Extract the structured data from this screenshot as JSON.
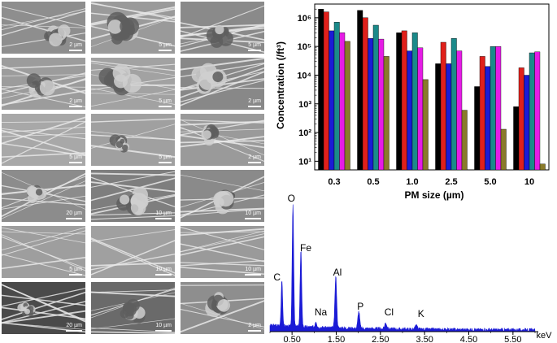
{
  "sem_panels": [
    {
      "scale": "2 µm",
      "bg": "#8e8e8e",
      "blob": 0.45
    },
    {
      "scale": "5 µm",
      "bg": "#9a9a9a",
      "blob": 0.85
    },
    {
      "scale": "5 µm",
      "bg": "#8a8a8a",
      "blob": 0.55
    },
    {
      "scale": "2 µm",
      "bg": "#9c9c9c",
      "blob": 0.5
    },
    {
      "scale": "5 µm",
      "bg": "#a2a2a2",
      "blob": 0.8
    },
    {
      "scale": "2 µm",
      "bg": "#888888",
      "blob": 0.7
    },
    {
      "scale": "5 µm",
      "bg": "#a8a8a8",
      "blob": 0
    },
    {
      "scale": "5 µm",
      "bg": "#a0a0a0",
      "blob": 0.3
    },
    {
      "scale": "2 µm",
      "bg": "#9a9a9a",
      "blob": 0.35
    },
    {
      "scale": "20 µm",
      "bg": "#8c8c8c",
      "blob": 0.4
    },
    {
      "scale": "10 µm",
      "bg": "#7e7e7e",
      "blob": 0.6
    },
    {
      "scale": "10 µm",
      "bg": "#8a8a8a",
      "blob": 0.55
    },
    {
      "scale": "5 µm",
      "bg": "#9e9e9e",
      "blob": 0
    },
    {
      "scale": "10 µm",
      "bg": "#a0a0a0",
      "blob": 0
    },
    {
      "scale": "10 µm",
      "bg": "#9a9a9a",
      "blob": 0
    },
    {
      "scale": "20 µm",
      "bg": "#4a4a4a",
      "blob": 0.2
    },
    {
      "scale": "10 µm",
      "bg": "#6a6a6a",
      "blob": 0.45
    },
    {
      "scale": "2 µm",
      "bg": "#8e8e8e",
      "blob": 0.6
    }
  ],
  "chart_data": [
    {
      "type": "bar",
      "ylabel": "Concentration (/ft³)",
      "xlabel": "PM size (µm)",
      "yscale": "log",
      "ylim": [
        5,
        3000000
      ],
      "y_ticks": [
        "10¹",
        "10²",
        "10³",
        "10⁴",
        "10⁵",
        "10⁶"
      ],
      "categories": [
        "0.3",
        "0.5",
        "1.0",
        "2.5",
        "5.0",
        "10"
      ],
      "series": [
        {
          "color": "#000000",
          "values": [
            2000000,
            1800000,
            300000,
            25000,
            4000,
            800
          ]
        },
        {
          "color": "#e0201b",
          "values": [
            1600000,
            1000000,
            350000,
            140000,
            45000,
            18000
          ]
        },
        {
          "color": "#1b1bd6",
          "values": [
            350000,
            190000,
            70000,
            25000,
            20000,
            10000
          ]
        },
        {
          "color": "#1b8a8a",
          "values": [
            700000,
            550000,
            300000,
            190000,
            100000,
            60000
          ]
        },
        {
          "color": "#e61be6",
          "values": [
            300000,
            180000,
            90000,
            70000,
            100000,
            65000
          ]
        },
        {
          "color": "#8a7a2a",
          "values": [
            150000,
            45000,
            7000,
            600,
            130,
            8
          ]
        }
      ]
    },
    {
      "type": "line",
      "xlabel": "keV",
      "x_ticks": [
        "0.50",
        "1.50",
        "2.50",
        "3.50",
        "4.50",
        "5.50"
      ],
      "xlim": [
        0,
        6
      ],
      "color": "#1b1bd6",
      "peaks": [
        {
          "label": "C",
          "x": 0.27,
          "height": 0.38
        },
        {
          "label": "O",
          "x": 0.52,
          "height": 1.0
        },
        {
          "label": "Fe",
          "x": 0.7,
          "height": 0.62
        },
        {
          "label": "Na",
          "x": 1.04,
          "height": 0.05
        },
        {
          "label": "Al",
          "x": 1.49,
          "height": 0.42
        },
        {
          "label": "P",
          "x": 2.01,
          "height": 0.14
        },
        {
          "label": "Cl",
          "x": 2.62,
          "height": 0.05
        },
        {
          "label": "K",
          "x": 3.31,
          "height": 0.03
        }
      ]
    }
  ]
}
